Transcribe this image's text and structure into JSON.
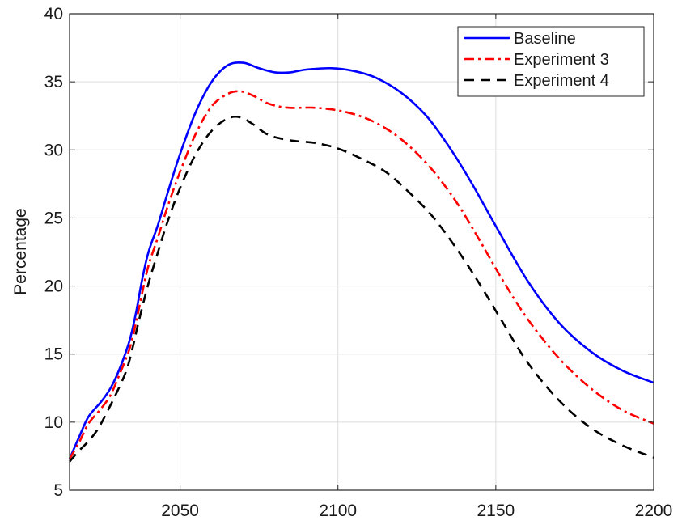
{
  "chart_data": {
    "type": "line",
    "title": "",
    "xlabel": "",
    "ylabel": "Percentage",
    "xlim": [
      2015,
      2200
    ],
    "ylim": [
      5,
      40
    ],
    "xticks": [
      2050,
      2100,
      2150,
      2200
    ],
    "yticks": [
      5,
      10,
      15,
      20,
      25,
      30,
      35,
      40
    ],
    "grid": true,
    "legend_position": "top-right",
    "series": [
      {
        "name": "Baseline",
        "color": "#0000ff",
        "style": "solid",
        "points": [
          [
            2015,
            7.3
          ],
          [
            2018,
            8.9
          ],
          [
            2021,
            10.4
          ],
          [
            2025,
            11.5
          ],
          [
            2028,
            12.5
          ],
          [
            2031,
            14.0
          ],
          [
            2034,
            16.0
          ],
          [
            2036,
            18.0
          ],
          [
            2038,
            20.5
          ],
          [
            2040,
            22.5
          ],
          [
            2043,
            24.5
          ],
          [
            2046,
            26.8
          ],
          [
            2050,
            29.7
          ],
          [
            2055,
            32.8
          ],
          [
            2060,
            35.0
          ],
          [
            2065,
            36.2
          ],
          [
            2070,
            36.4
          ],
          [
            2075,
            36.0
          ],
          [
            2080,
            35.7
          ],
          [
            2085,
            35.7
          ],
          [
            2090,
            35.9
          ],
          [
            2098,
            36.0
          ],
          [
            2105,
            35.8
          ],
          [
            2112,
            35.3
          ],
          [
            2120,
            34.2
          ],
          [
            2128,
            32.5
          ],
          [
            2135,
            30.3
          ],
          [
            2142,
            27.7
          ],
          [
            2150,
            24.4
          ],
          [
            2160,
            20.4
          ],
          [
            2170,
            17.3
          ],
          [
            2180,
            15.2
          ],
          [
            2190,
            13.8
          ],
          [
            2200,
            12.9
          ]
        ]
      },
      {
        "name": "Experiment 3",
        "color": "#ff0000",
        "style": "dashdot",
        "points": [
          [
            2015,
            7.3
          ],
          [
            2018,
            8.5
          ],
          [
            2021,
            9.9
          ],
          [
            2025,
            11.0
          ],
          [
            2028,
            12.0
          ],
          [
            2031,
            13.6
          ],
          [
            2034,
            15.4
          ],
          [
            2036,
            17.3
          ],
          [
            2038,
            19.5
          ],
          [
            2040,
            21.5
          ],
          [
            2043,
            23.6
          ],
          [
            2046,
            25.8
          ],
          [
            2050,
            28.4
          ],
          [
            2055,
            31.2
          ],
          [
            2060,
            33.2
          ],
          [
            2065,
            34.1
          ],
          [
            2069,
            34.3
          ],
          [
            2073,
            34.0
          ],
          [
            2078,
            33.4
          ],
          [
            2084,
            33.1
          ],
          [
            2092,
            33.1
          ],
          [
            2100,
            32.9
          ],
          [
            2108,
            32.4
          ],
          [
            2115,
            31.6
          ],
          [
            2122,
            30.4
          ],
          [
            2130,
            28.5
          ],
          [
            2138,
            26.0
          ],
          [
            2145,
            23.3
          ],
          [
            2152,
            20.5
          ],
          [
            2160,
            17.6
          ],
          [
            2170,
            14.7
          ],
          [
            2180,
            12.5
          ],
          [
            2190,
            10.9
          ],
          [
            2200,
            9.9
          ]
        ]
      },
      {
        "name": "Experiment 4",
        "color": "#000000",
        "style": "dashed",
        "points": [
          [
            2015,
            7.1
          ],
          [
            2018,
            7.9
          ],
          [
            2021,
            8.6
          ],
          [
            2024,
            9.5
          ],
          [
            2027,
            10.8
          ],
          [
            2030,
            12.2
          ],
          [
            2033,
            13.8
          ],
          [
            2035,
            15.5
          ],
          [
            2037,
            17.5
          ],
          [
            2040,
            20.2
          ],
          [
            2043,
            22.5
          ],
          [
            2046,
            24.7
          ],
          [
            2050,
            27.2
          ],
          [
            2055,
            29.7
          ],
          [
            2060,
            31.4
          ],
          [
            2065,
            32.3
          ],
          [
            2069,
            32.4
          ],
          [
            2073,
            31.9
          ],
          [
            2078,
            31.1
          ],
          [
            2085,
            30.7
          ],
          [
            2093,
            30.5
          ],
          [
            2100,
            30.1
          ],
          [
            2107,
            29.4
          ],
          [
            2115,
            28.4
          ],
          [
            2122,
            27.0
          ],
          [
            2130,
            25.1
          ],
          [
            2138,
            22.6
          ],
          [
            2145,
            20.1
          ],
          [
            2152,
            17.4
          ],
          [
            2160,
            14.4
          ],
          [
            2170,
            11.6
          ],
          [
            2180,
            9.6
          ],
          [
            2190,
            8.3
          ],
          [
            2200,
            7.4
          ]
        ]
      }
    ]
  }
}
